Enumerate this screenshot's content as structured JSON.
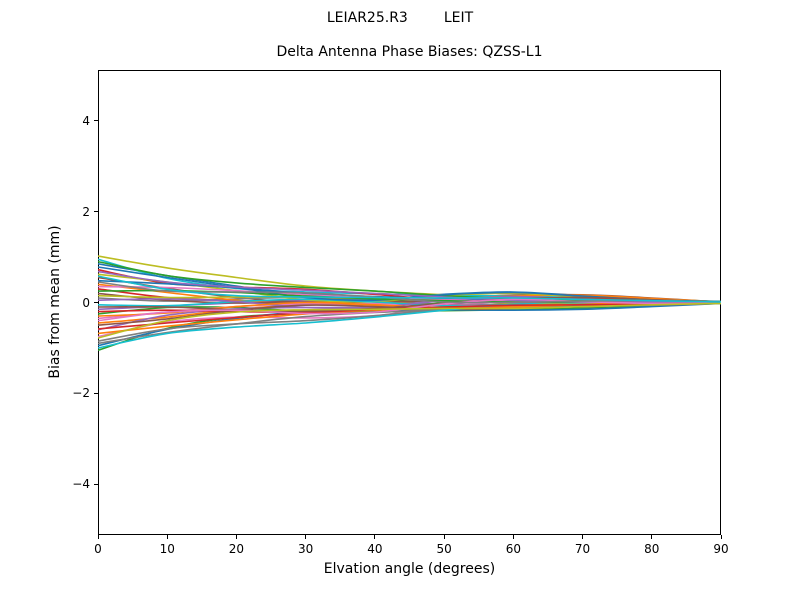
{
  "figure": {
    "suptitle_left": "LEIAR25.R3",
    "suptitle_right": "LEIT",
    "axes_title": "Delta Antenna Phase Biases: QZSS-L1",
    "xlabel": "Elvation angle (degrees)",
    "ylabel": "Bias from mean (mm)",
    "background_color": "#ffffff",
    "spine_color": "#000000"
  },
  "chart_data": {
    "type": "line",
    "title": "Delta Antenna Phase Biases: QZSS-L1",
    "xlabel": "Elvation angle (degrees)",
    "ylabel": "Bias from mean (mm)",
    "xlim": [
      0,
      90
    ],
    "ylim": [
      -5.11,
      5.11
    ],
    "xticks": [
      0,
      10,
      20,
      30,
      40,
      50,
      60,
      70,
      80,
      90
    ],
    "yticks": [
      -4,
      -2,
      0,
      2,
      4
    ],
    "grid": false,
    "legend": "none",
    "x": [
      0,
      10,
      20,
      30,
      40,
      50,
      60,
      70,
      80,
      90
    ],
    "palette": [
      "#1f77b4",
      "#ff7f0e",
      "#2ca02c",
      "#d62728",
      "#9467bd",
      "#8c564b",
      "#e377c2",
      "#7f7f7f",
      "#bcbd22",
      "#17becf"
    ],
    "series": [
      {
        "color": 0,
        "y": [
          0.85,
          0.59,
          0.36,
          0.13,
          0.07,
          0.18,
          0.23,
          0.15,
          0.07,
          0.02
        ]
      },
      {
        "color": 1,
        "y": [
          -0.45,
          -0.32,
          -0.15,
          -0.05,
          -0.08,
          -0.14,
          -0.12,
          -0.06,
          -0.02,
          -0.01
        ]
      },
      {
        "color": 2,
        "y": [
          -1.05,
          -0.57,
          -0.32,
          -0.24,
          -0.21,
          -0.18,
          -0.16,
          -0.12,
          -0.07,
          -0.02
        ]
      },
      {
        "color": 3,
        "y": [
          0.3,
          0.11,
          0.04,
          0.04,
          0.05,
          0.05,
          0.06,
          0.04,
          0.02,
          0.01
        ]
      },
      {
        "color": 4,
        "y": [
          -0.15,
          -0.08,
          -0.01,
          0.03,
          0.02,
          -0.03,
          -0.06,
          -0.07,
          -0.04,
          0.0
        ]
      },
      {
        "color": 5,
        "y": [
          0.55,
          0.31,
          0.11,
          0.0,
          0.02,
          0.09,
          0.16,
          0.17,
          0.1,
          0.01
        ]
      },
      {
        "color": 6,
        "y": [
          -0.75,
          -0.43,
          -0.32,
          -0.34,
          -0.29,
          -0.09,
          0.02,
          -0.02,
          -0.04,
          -0.02
        ]
      },
      {
        "color": 7,
        "y": [
          0.1,
          0.03,
          0.08,
          0.11,
          0.04,
          -0.05,
          -0.05,
          0.0,
          0.01,
          0.0
        ]
      },
      {
        "color": 8,
        "y": [
          1.02,
          0.76,
          0.55,
          0.36,
          0.25,
          0.17,
          0.11,
          0.09,
          0.07,
          0.02
        ]
      },
      {
        "color": 9,
        "y": [
          0.95,
          0.53,
          0.31,
          0.23,
          0.19,
          0.16,
          0.14,
          0.11,
          0.06,
          0.02
        ]
      },
      {
        "color": 0,
        "y": [
          -0.95,
          -0.59,
          -0.35,
          -0.2,
          -0.16,
          -0.16,
          -0.17,
          -0.15,
          -0.09,
          -0.02
        ]
      },
      {
        "color": 1,
        "y": [
          0.4,
          0.22,
          0.05,
          -0.04,
          -0.02,
          0.07,
          0.14,
          0.16,
          0.09,
          0.01
        ]
      },
      {
        "color": 2,
        "y": [
          -0.25,
          -0.11,
          -0.11,
          -0.19,
          -0.18,
          0.0,
          0.09,
          0.04,
          -0.01,
          0.0
        ]
      },
      {
        "color": 3,
        "y": [
          0.72,
          0.42,
          0.34,
          0.29,
          0.18,
          0.06,
          0.03,
          0.06,
          0.05,
          0.01
        ]
      },
      {
        "color": 4,
        "y": [
          -0.6,
          -0.28,
          -0.14,
          -0.11,
          -0.11,
          -0.1,
          -0.1,
          -0.07,
          -0.04,
          -0.01
        ]
      },
      {
        "color": 5,
        "y": [
          0.2,
          0.05,
          -0.01,
          0.01,
          0.02,
          0.03,
          0.05,
          0.03,
          0.01,
          0.0
        ]
      },
      {
        "color": 6,
        "y": [
          -0.35,
          -0.21,
          -0.09,
          -0.03,
          -0.03,
          -0.06,
          -0.09,
          -0.09,
          -0.05,
          -0.01
        ]
      },
      {
        "color": 7,
        "y": [
          -0.85,
          -0.58,
          -0.47,
          -0.4,
          -0.29,
          -0.14,
          -0.02,
          0.03,
          0.01,
          -0.02
        ]
      },
      {
        "color": 8,
        "y": [
          0.62,
          0.45,
          0.26,
          0.06,
          0.02,
          0.15,
          0.2,
          0.12,
          0.05,
          0.01
        ]
      },
      {
        "color": 9,
        "y": [
          -0.05,
          -0.07,
          0.02,
          0.07,
          0.01,
          -0.07,
          -0.07,
          -0.02,
          0.0,
          0.0
        ]
      },
      {
        "color": 0,
        "y": [
          0.48,
          0.41,
          0.32,
          0.2,
          0.13,
          0.08,
          0.04,
          0.04,
          0.03,
          0.01
        ]
      },
      {
        "color": 1,
        "y": [
          -0.68,
          -0.52,
          -0.38,
          -0.25,
          -0.17,
          -0.12,
          -0.07,
          -0.06,
          -0.04,
          -0.01
        ]
      },
      {
        "color": 2,
        "y": [
          0.9,
          0.59,
          0.43,
          0.33,
          0.25,
          0.15,
          0.08,
          0.04,
          0.03,
          0.02
        ]
      },
      {
        "color": 3,
        "y": [
          -0.2,
          -0.17,
          -0.2,
          -0.21,
          -0.15,
          -0.03,
          0.07,
          0.1,
          0.05,
          0.0
        ]
      },
      {
        "color": 4,
        "y": [
          0.05,
          0.08,
          0.02,
          -0.11,
          -0.11,
          0.05,
          0.13,
          0.07,
          0.01,
          0.0
        ]
      },
      {
        "color": 5,
        "y": [
          -0.5,
          -0.36,
          -0.17,
          -0.06,
          -0.09,
          -0.15,
          -0.13,
          -0.06,
          -0.03,
          -0.01
        ]
      },
      {
        "color": 6,
        "y": [
          0.35,
          0.33,
          0.26,
          0.17,
          0.1,
          0.06,
          0.02,
          0.02,
          0.02,
          0.01
        ]
      },
      {
        "color": 7,
        "y": [
          -0.9,
          -0.66,
          -0.47,
          -0.31,
          -0.22,
          -0.15,
          -0.1,
          -0.08,
          -0.06,
          -0.02
        ]
      },
      {
        "color": 8,
        "y": [
          0.15,
          0.11,
          0.12,
          0.12,
          0.08,
          0.03,
          -0.02,
          -0.04,
          -0.02,
          0.0
        ]
      },
      {
        "color": 9,
        "y": [
          -1.0,
          -0.68,
          -0.54,
          -0.45,
          -0.32,
          -0.17,
          -0.04,
          0.02,
          0.0,
          -0.02
        ]
      },
      {
        "color": 0,
        "y": [
          0.78,
          0.55,
          0.33,
          0.11,
          0.05,
          0.17,
          0.22,
          0.14,
          0.06,
          0.02
        ]
      },
      {
        "color": 1,
        "y": [
          -0.3,
          -0.23,
          -0.09,
          0.0,
          -0.05,
          -0.12,
          -0.1,
          -0.04,
          -0.01,
          -0.01
        ]
      },
      {
        "color": 2,
        "y": [
          0.25,
          0.26,
          0.22,
          0.14,
          0.08,
          0.04,
          0.01,
          0.01,
          0.02,
          0.01
        ]
      },
      {
        "color": 3,
        "y": [
          -0.58,
          -0.45,
          -0.33,
          -0.22,
          -0.15,
          -0.1,
          -0.06,
          -0.05,
          -0.04,
          -0.01
        ]
      },
      {
        "color": 4,
        "y": [
          0.68,
          0.45,
          0.34,
          0.27,
          0.2,
          0.12,
          0.05,
          0.01,
          0.01,
          0.01
        ]
      },
      {
        "color": 5,
        "y": [
          -0.1,
          -0.1,
          -0.16,
          -0.19,
          -0.13,
          -0.02,
          0.08,
          0.11,
          0.06,
          0.0
        ]
      },
      {
        "color": 6,
        "y": [
          -0.4,
          -0.21,
          -0.17,
          -0.24,
          -0.21,
          -0.03,
          0.07,
          0.02,
          -0.02,
          -0.01
        ]
      },
      {
        "color": 7,
        "y": [
          0.45,
          0.25,
          0.23,
          0.21,
          0.12,
          0.01,
          0.0,
          0.03,
          0.04,
          0.01
        ]
      },
      {
        "color": 8,
        "y": [
          -0.78,
          -0.4,
          -0.21,
          -0.16,
          -0.15,
          -0.13,
          -0.13,
          -0.09,
          -0.05,
          -0.02
        ]
      },
      {
        "color": 9,
        "y": [
          0.58,
          0.29,
          0.15,
          0.12,
          0.11,
          0.1,
          0.1,
          0.07,
          0.04,
          0.01
        ]
      }
    ]
  }
}
